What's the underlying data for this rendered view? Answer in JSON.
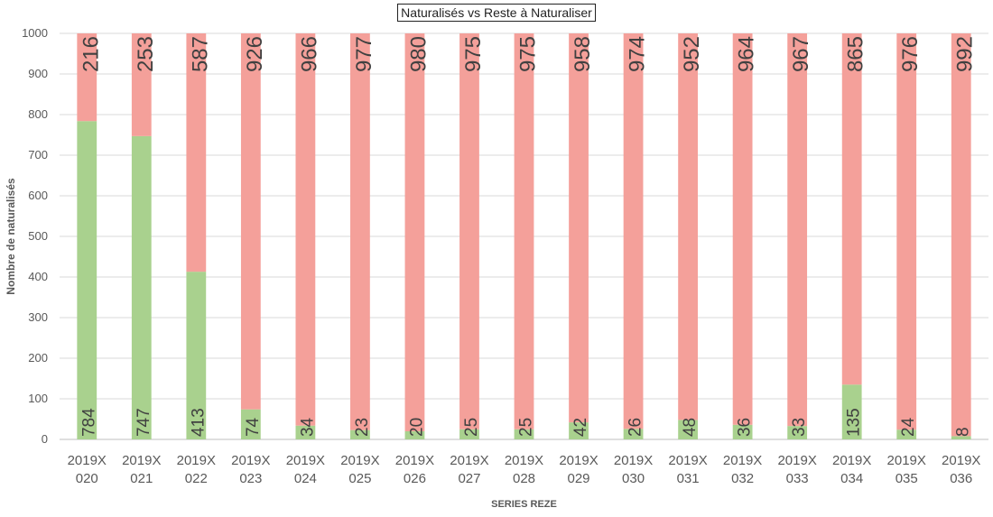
{
  "chart_data": {
    "type": "bar",
    "stacked": true,
    "title": "Naturalisés vs Reste à Naturaliser",
    "xlabel": "SERIES REZE",
    "ylabel": "Nombre de naturalisés",
    "ylim": [
      0,
      1000
    ],
    "yticks": [
      0,
      100,
      200,
      300,
      400,
      500,
      600,
      700,
      800,
      900,
      1000
    ],
    "grid": true,
    "legend": "none",
    "categories": [
      [
        "2019X",
        "020"
      ],
      [
        "2019X",
        "021"
      ],
      [
        "2019X",
        "022"
      ],
      [
        "2019X",
        "023"
      ],
      [
        "2019X",
        "024"
      ],
      [
        "2019X",
        "025"
      ],
      [
        "2019X",
        "026"
      ],
      [
        "2019X",
        "027"
      ],
      [
        "2019X",
        "028"
      ],
      [
        "2019X",
        "029"
      ],
      [
        "2019X",
        "030"
      ],
      [
        "2019X",
        "031"
      ],
      [
        "2019X",
        "032"
      ],
      [
        "2019X",
        "033"
      ],
      [
        "2019X",
        "034"
      ],
      [
        "2019X",
        "035"
      ],
      [
        "2019X",
        "036"
      ]
    ],
    "series": [
      {
        "color": "#a9d18e",
        "values": [
          784,
          747,
          413,
          74,
          34,
          23,
          20,
          25,
          25,
          42,
          26,
          48,
          36,
          33,
          135,
          24,
          8
        ]
      },
      {
        "color": "#f4a09a",
        "values": [
          216,
          253,
          587,
          926,
          966,
          977,
          980,
          975,
          975,
          958,
          974,
          952,
          964,
          967,
          865,
          976,
          992
        ]
      }
    ]
  }
}
